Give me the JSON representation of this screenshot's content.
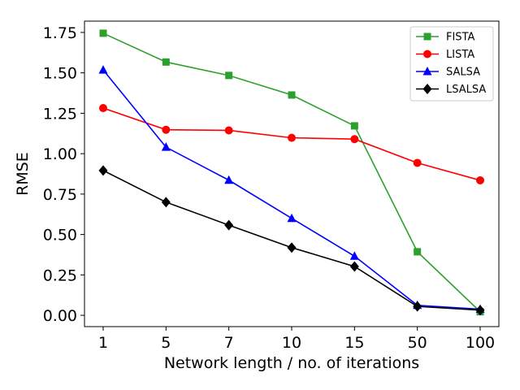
{
  "chart_data": {
    "type": "line",
    "title": "",
    "xlabel": "Network length / no. of iterations",
    "ylabel": "RMSE",
    "categories": [
      "1",
      "5",
      "7",
      "10",
      "15",
      "50",
      "100"
    ],
    "ylim": [
      -0.07,
      1.82
    ],
    "yticks": [
      0.0,
      0.25,
      0.5,
      0.75,
      1.0,
      1.25,
      1.5,
      1.75
    ],
    "ytick_labels": [
      "0.00",
      "0.25",
      "0.50",
      "0.75",
      "1.00",
      "1.25",
      "1.50",
      "1.75"
    ],
    "grid": false,
    "legend": "top-right",
    "series": [
      {
        "name": "FISTA",
        "color": "#2ca02c",
        "marker": "square",
        "values": [
          1.745,
          1.567,
          1.484,
          1.363,
          1.172,
          0.393,
          0.022
        ]
      },
      {
        "name": "LISTA",
        "color": "#ff0000",
        "marker": "circle",
        "values": [
          1.282,
          1.148,
          1.144,
          1.098,
          1.09,
          0.943,
          0.835
        ]
      },
      {
        "name": "SALSA",
        "color": "#0000ff",
        "marker": "triangle",
        "values": [
          1.518,
          1.04,
          0.836,
          0.6,
          0.366,
          0.062,
          0.038
        ]
      },
      {
        "name": "LSALSA",
        "color": "#000000",
        "marker": "diamond",
        "values": [
          0.896,
          0.7,
          0.558,
          0.419,
          0.302,
          0.055,
          0.032
        ]
      }
    ]
  }
}
